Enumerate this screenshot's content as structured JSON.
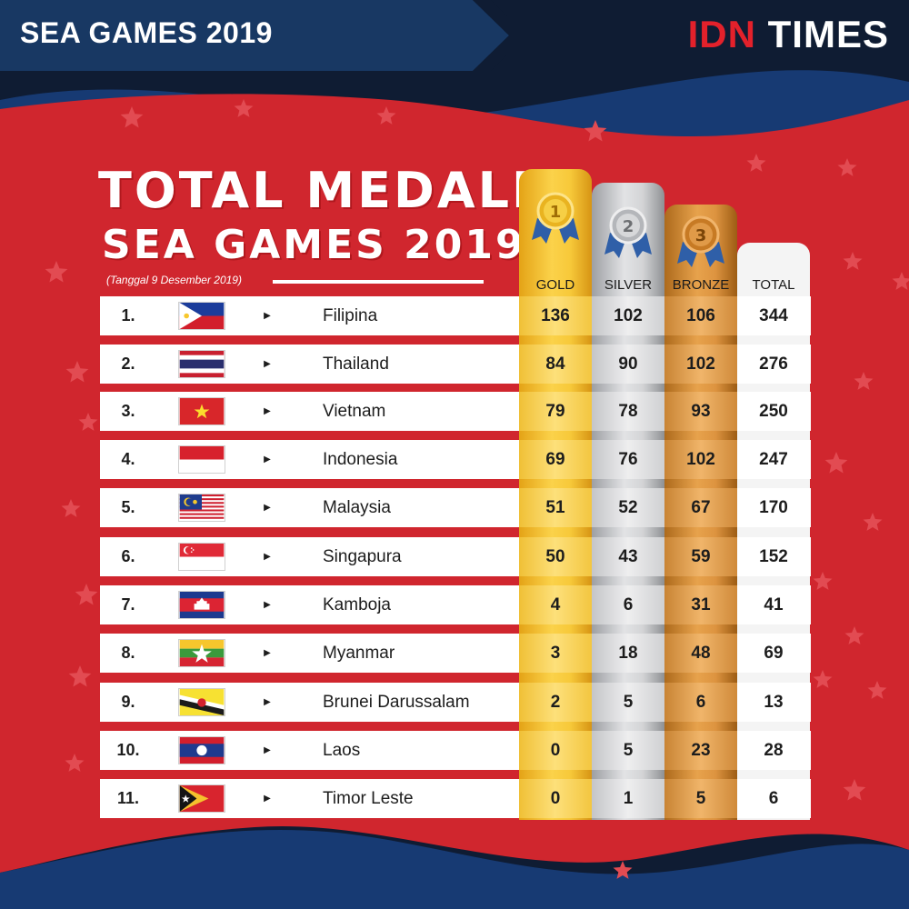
{
  "header": {
    "title": "SEA GAMES 2019",
    "brand_part1": "IDN",
    "brand_part2": "TIMES"
  },
  "colors": {
    "red_panel": "#d0262e",
    "navy": "#0f1c33",
    "blue_band": "#173a73",
    "gold": "#f7c93a",
    "silver": "#d3d4d6",
    "bronze": "#dd9440"
  },
  "title": {
    "line1": "TOTAL MEDALI",
    "line2": "SEA GAMES 2019",
    "date": "(Tanggal 9 Desember 2019)"
  },
  "columns": {
    "gold": "GOLD",
    "silver": "SILVER",
    "bronze": "BRONZE",
    "total": "TOTAL"
  },
  "medals": {
    "gold_number": "1",
    "silver_number": "2",
    "bronze_number": "3"
  },
  "rows": [
    {
      "rank": "1.",
      "flag": "philippines-flag",
      "country": "Filipina",
      "gold": "136",
      "silver": "102",
      "bronze": "106",
      "total": "344"
    },
    {
      "rank": "2.",
      "flag": "thailand-flag",
      "country": "Thailand",
      "gold": "84",
      "silver": "90",
      "bronze": "102",
      "total": "276"
    },
    {
      "rank": "3.",
      "flag": "vietnam-flag",
      "country": "Vietnam",
      "gold": "79",
      "silver": "78",
      "bronze": "93",
      "total": "250"
    },
    {
      "rank": "4.",
      "flag": "indonesia-flag",
      "country": "Indonesia",
      "gold": "69",
      "silver": "76",
      "bronze": "102",
      "total": "247"
    },
    {
      "rank": "5.",
      "flag": "malaysia-flag",
      "country": "Malaysia",
      "gold": "51",
      "silver": "52",
      "bronze": "67",
      "total": "170"
    },
    {
      "rank": "6.",
      "flag": "singapore-flag",
      "country": "Singapura",
      "gold": "50",
      "silver": "43",
      "bronze": "59",
      "total": "152"
    },
    {
      "rank": "7.",
      "flag": "cambodia-flag",
      "country": "Kamboja",
      "gold": "4",
      "silver": "6",
      "bronze": "31",
      "total": "41"
    },
    {
      "rank": "8.",
      "flag": "myanmar-flag",
      "country": "Myanmar",
      "gold": "3",
      "silver": "18",
      "bronze": "48",
      "total": "69"
    },
    {
      "rank": "9.",
      "flag": "brunei-flag",
      "country": "Brunei Darussalam",
      "gold": "2",
      "silver": "5",
      "bronze": "6",
      "total": "13"
    },
    {
      "rank": "10.",
      "flag": "laos-flag",
      "country": "Laos",
      "gold": "0",
      "silver": "5",
      "bronze": "23",
      "total": "28"
    },
    {
      "rank": "11.",
      "flag": "timor-leste-flag",
      "country": "Timor Leste",
      "gold": "0",
      "silver": "1",
      "bronze": "5",
      "total": "6"
    }
  ]
}
